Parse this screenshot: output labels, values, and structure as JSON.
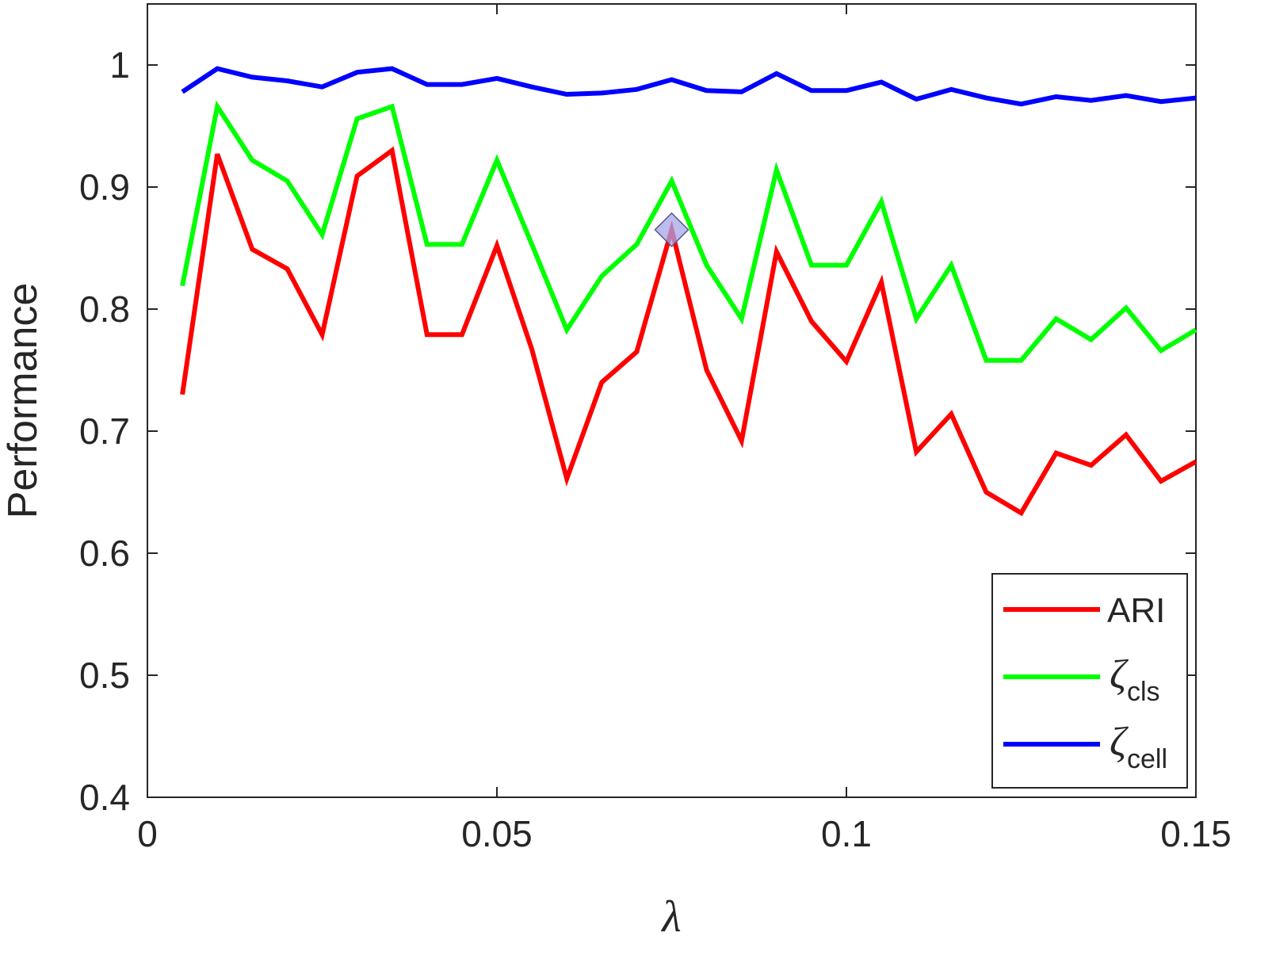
{
  "chart_data": {
    "type": "line",
    "xlabel": "λ",
    "ylabel": "Performance",
    "xlim": [
      0,
      0.15
    ],
    "ylim": [
      0.4,
      1.05
    ],
    "xticks": [
      0,
      0.05,
      0.1,
      0.15
    ],
    "xtick_labels": [
      "0",
      "0.05",
      "0.1",
      "0.15"
    ],
    "yticks": [
      0.4,
      0.5,
      0.6,
      0.7,
      0.8,
      0.9,
      1.0
    ],
    "ytick_labels": [
      "0.4",
      "0.5",
      "0.6",
      "0.7",
      "0.8",
      "0.9",
      "1"
    ],
    "grid": false,
    "legend_position": "bottom-right",
    "x": [
      0.005,
      0.01,
      0.015,
      0.02,
      0.025,
      0.03,
      0.035,
      0.04,
      0.045,
      0.05,
      0.055,
      0.06,
      0.065,
      0.07,
      0.075,
      0.08,
      0.085,
      0.09,
      0.095,
      0.1,
      0.105,
      0.11,
      0.115,
      0.12,
      0.125,
      0.13,
      0.135,
      0.14,
      0.145,
      0.15
    ],
    "series": [
      {
        "name": "ARI",
        "color": "#ff0000",
        "values": [
          0.73,
          0.927,
          0.849,
          0.833,
          0.779,
          0.909,
          0.93,
          0.779,
          0.779,
          0.852,
          0.767,
          0.661,
          0.74,
          0.765,
          0.865,
          0.75,
          0.692,
          0.847,
          0.79,
          0.757,
          0.822,
          0.683,
          0.714,
          0.65,
          0.633,
          0.682,
          0.672,
          0.697,
          0.659,
          0.675
        ]
      },
      {
        "name": "ζcls",
        "symbol": "ζ",
        "subscript": "cls",
        "color": "#00ff00",
        "values": [
          0.819,
          0.966,
          0.922,
          0.905,
          0.861,
          0.956,
          0.966,
          0.853,
          0.853,
          0.922,
          0.853,
          0.783,
          0.827,
          0.853,
          0.905,
          0.836,
          0.792,
          0.914,
          0.836,
          0.836,
          0.888,
          0.792,
          0.836,
          0.758,
          0.758,
          0.792,
          0.775,
          0.801,
          0.766,
          0.783
        ]
      },
      {
        "name": "ζcell",
        "symbol": "ζ",
        "subscript": "cell",
        "color": "#0000ff",
        "values": [
          0.978,
          0.997,
          0.99,
          0.987,
          0.982,
          0.994,
          0.997,
          0.984,
          0.984,
          0.989,
          0.982,
          0.976,
          0.977,
          0.98,
          0.988,
          0.979,
          0.978,
          0.993,
          0.979,
          0.979,
          0.986,
          0.972,
          0.98,
          0.973,
          0.968,
          0.974,
          0.971,
          0.975,
          0.97,
          0.973
        ]
      }
    ],
    "highlight": {
      "series": "ARI",
      "x": 0.075,
      "y": 0.865,
      "marker": "diamond",
      "color": "#a6a6e8"
    }
  }
}
